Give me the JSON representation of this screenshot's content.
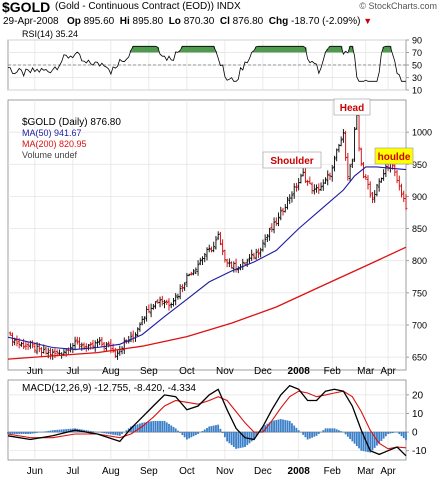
{
  "header": {
    "ticker": "$GOLD",
    "description": "(Gold - Continuous Contract (EOD)) INDX",
    "site": "© StockCharts.com",
    "date": "29-Apr-2008",
    "op_label": "Op",
    "open": "895.60",
    "hi_label": "Hi",
    "high": "895.80",
    "lo_label": "Lo",
    "low": "870.30",
    "cl_label": "Cl",
    "close": "876.80",
    "chg_label": "Chg",
    "change": "-18.70 (-2.09%)",
    "change_arrow": "▼"
  },
  "colors": {
    "price_up": "#000000",
    "price_down": "#cc0000",
    "ma50": "#1c1ca0",
    "ma200": "#dd1111",
    "macd": "#000000",
    "signal": "#dd1111",
    "histogram": "#3a7fc8",
    "rsi_fill": "#4f9a4f",
    "annotation_text": "#cc0000",
    "annotation_highlight": "#ffff00"
  },
  "annotations": {
    "head": "Head",
    "left_shoulder": "Shoulder",
    "right_shoulder": "houlde"
  },
  "chart_data": {
    "type": "line",
    "x_axis": {
      "months": [
        "Jun",
        "Jul",
        "Aug",
        "Sep",
        "Oct",
        "Nov",
        "Dec",
        "2008",
        "Feb",
        "Mar",
        "Apr"
      ]
    },
    "rsi": {
      "legend": "RSI(14) 35.24",
      "ylim": [
        10,
        90
      ],
      "ticks": [
        10,
        30,
        50,
        70,
        90
      ],
      "overbought": 70,
      "oversold": 30
    },
    "price": {
      "legend_main": "$GOLD (Daily) 876.80",
      "legend_ma50": "MA(50) 941.67",
      "legend_ma200": "MA(200) 820.95",
      "legend_volume": "Volume undef",
      "ylim": [
        630,
        1050
      ],
      "ticks": [
        650,
        700,
        750,
        800,
        850,
        900,
        950,
        1000
      ],
      "close_points": [
        [
          0,
          685
        ],
        [
          5,
          670
        ],
        [
          10,
          668
        ],
        [
          15,
          658
        ],
        [
          20,
          655
        ],
        [
          24,
          657
        ],
        [
          28,
          668
        ],
        [
          32,
          672
        ],
        [
          36,
          663
        ],
        [
          40,
          672
        ],
        [
          45,
          667
        ],
        [
          48,
          655
        ],
        [
          52,
          672
        ],
        [
          56,
          680
        ],
        [
          60,
          712
        ],
        [
          64,
          730
        ],
        [
          68,
          740
        ],
        [
          72,
          733
        ],
        [
          76,
          748
        ],
        [
          80,
          775
        ],
        [
          84,
          790
        ],
        [
          88,
          810
        ],
        [
          92,
          822
        ],
        [
          94,
          838
        ],
        [
          96,
          810
        ],
        [
          100,
          792
        ],
        [
          104,
          790
        ],
        [
          108,
          802
        ],
        [
          112,
          815
        ],
        [
          116,
          840
        ],
        [
          118,
          850
        ],
        [
          121,
          865
        ],
        [
          124,
          888
        ],
        [
          127,
          905
        ],
        [
          130,
          922
        ],
        [
          132,
          935
        ],
        [
          134,
          922
        ],
        [
          137,
          908
        ],
        [
          141,
          918
        ],
        [
          145,
          942
        ],
        [
          147,
          968
        ],
        [
          149,
          988
        ],
        [
          150,
          995
        ],
        [
          152,
          935
        ],
        [
          154,
          955
        ],
        [
          155,
          1000
        ],
        [
          156,
          1022
        ],
        [
          157,
          975
        ],
        [
          159,
          932
        ],
        [
          161,
          918
        ],
        [
          163,
          895
        ],
        [
          165,
          918
        ],
        [
          167,
          925
        ],
        [
          169,
          945
        ],
        [
          171,
          955
        ],
        [
          173,
          935
        ],
        [
          175,
          915
        ],
        [
          177,
          898
        ],
        [
          178,
          876.8
        ]
      ],
      "ma50_points": [
        [
          0,
          681
        ],
        [
          10,
          673
        ],
        [
          20,
          665
        ],
        [
          30,
          662
        ],
        [
          40,
          665
        ],
        [
          50,
          670
        ],
        [
          60,
          685
        ],
        [
          70,
          713
        ],
        [
          80,
          740
        ],
        [
          90,
          767
        ],
        [
          100,
          784
        ],
        [
          110,
          798
        ],
        [
          120,
          816
        ],
        [
          130,
          850
        ],
        [
          140,
          880
        ],
        [
          150,
          910
        ],
        [
          155,
          932
        ],
        [
          160,
          946
        ],
        [
          165,
          946
        ],
        [
          170,
          944
        ],
        [
          178,
          941.67
        ]
      ],
      "ma200_points": [
        [
          0,
          647
        ],
        [
          20,
          652
        ],
        [
          40,
          657
        ],
        [
          60,
          667
        ],
        [
          80,
          682
        ],
        [
          100,
          703
        ],
        [
          120,
          728
        ],
        [
          140,
          760
        ],
        [
          160,
          792
        ],
        [
          178,
          820.95
        ]
      ]
    },
    "macd": {
      "legend": "MACD(12,26,9) -12.755, -8.420, -4.334",
      "ylim": [
        -15,
        28
      ],
      "ticks": [
        -10,
        0,
        10,
        20
      ],
      "macd_points": [
        [
          0,
          -2
        ],
        [
          10,
          -4
        ],
        [
          20,
          -2
        ],
        [
          30,
          1
        ],
        [
          40,
          -1
        ],
        [
          50,
          -5
        ],
        [
          55,
          2
        ],
        [
          60,
          8
        ],
        [
          65,
          14
        ],
        [
          70,
          20
        ],
        [
          75,
          19
        ],
        [
          80,
          12
        ],
        [
          85,
          14
        ],
        [
          90,
          20
        ],
        [
          94,
          23
        ],
        [
          98,
          12
        ],
        [
          102,
          2
        ],
        [
          106,
          -3
        ],
        [
          110,
          -4
        ],
        [
          114,
          3
        ],
        [
          118,
          12
        ],
        [
          122,
          20
        ],
        [
          126,
          25
        ],
        [
          130,
          23
        ],
        [
          134,
          17
        ],
        [
          138,
          17
        ],
        [
          142,
          22
        ],
        [
          146,
          23
        ],
        [
          150,
          22
        ],
        [
          154,
          14
        ],
        [
          158,
          1
        ],
        [
          162,
          -10
        ],
        [
          166,
          -12
        ],
        [
          170,
          -10
        ],
        [
          174,
          -8
        ],
        [
          178,
          -12.755
        ]
      ],
      "signal_points": [
        [
          0,
          -1
        ],
        [
          10,
          -3
        ],
        [
          20,
          -3
        ],
        [
          30,
          -1
        ],
        [
          40,
          -1
        ],
        [
          50,
          -3
        ],
        [
          55,
          -1
        ],
        [
          60,
          3
        ],
        [
          65,
          8
        ],
        [
          70,
          14
        ],
        [
          75,
          17
        ],
        [
          80,
          16
        ],
        [
          85,
          15
        ],
        [
          90,
          17
        ],
        [
          94,
          19
        ],
        [
          98,
          17
        ],
        [
          102,
          11
        ],
        [
          106,
          5
        ],
        [
          110,
          0
        ],
        [
          114,
          0
        ],
        [
          118,
          6
        ],
        [
          122,
          13
        ],
        [
          126,
          19
        ],
        [
          130,
          22
        ],
        [
          134,
          21
        ],
        [
          138,
          19
        ],
        [
          142,
          20
        ],
        [
          146,
          21
        ],
        [
          150,
          22
        ],
        [
          154,
          19
        ],
        [
          158,
          11
        ],
        [
          162,
          1
        ],
        [
          166,
          -6
        ],
        [
          170,
          -9
        ],
        [
          174,
          -8
        ],
        [
          178,
          -8.42
        ]
      ]
    }
  }
}
